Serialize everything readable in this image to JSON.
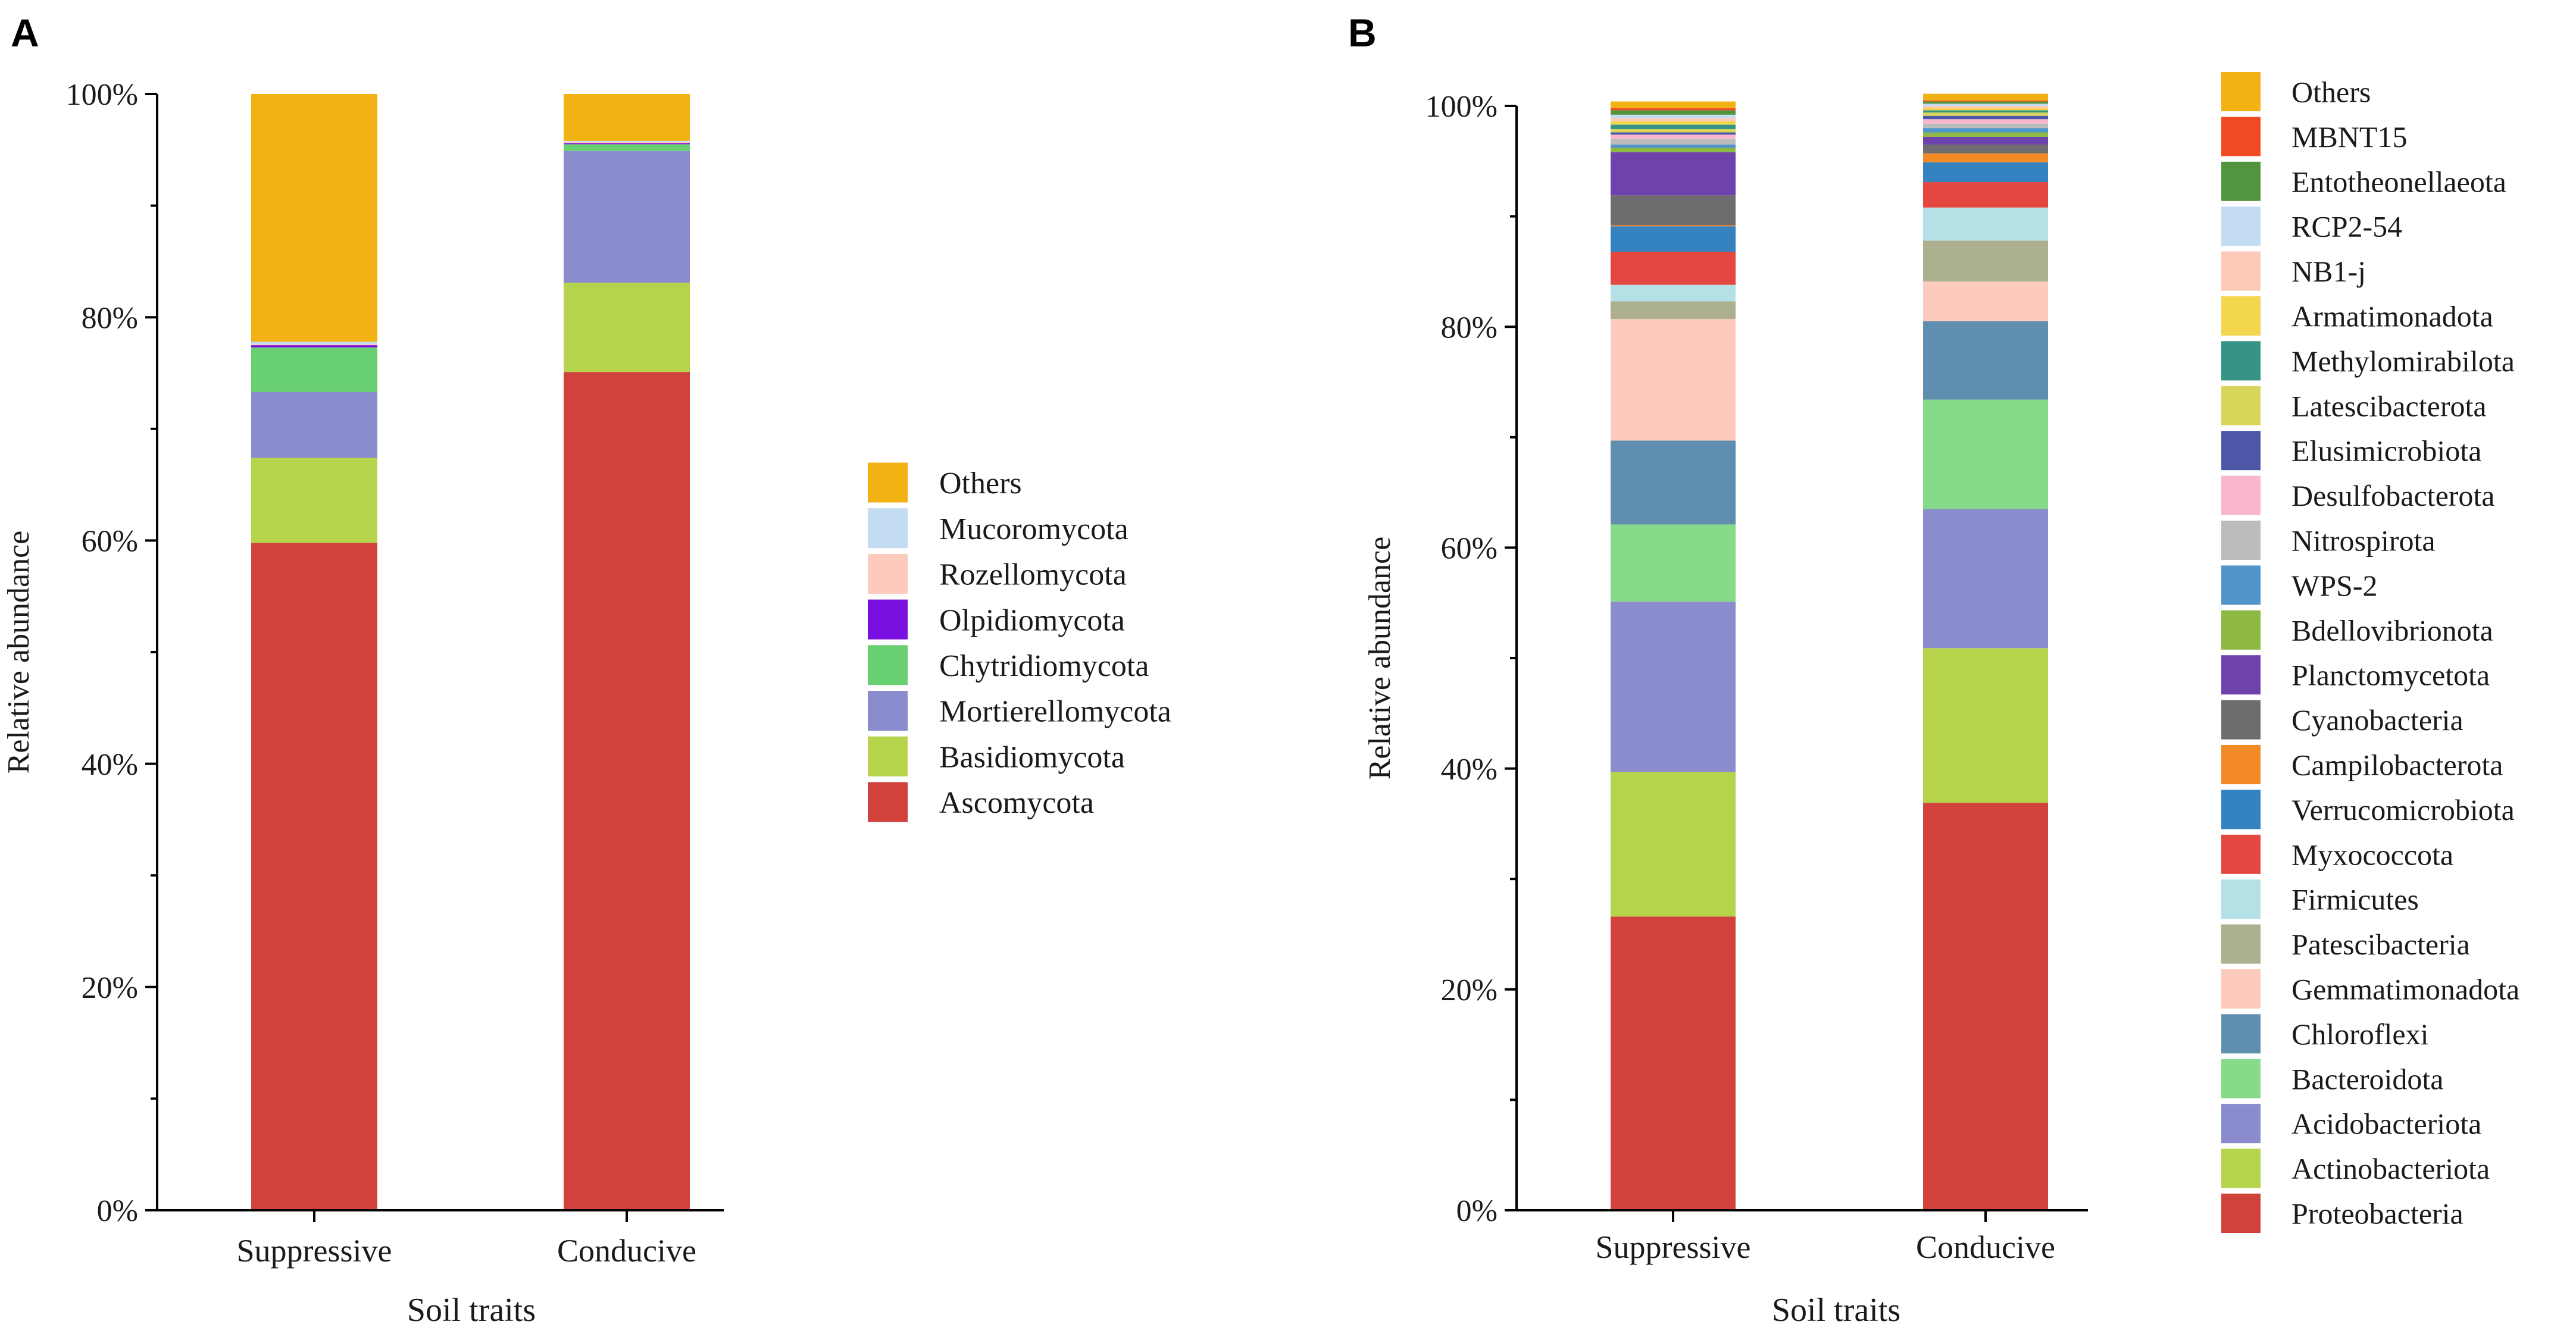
{
  "chart_data": [
    {
      "panel_label": "A",
      "type": "bar",
      "stacked": true,
      "xlabel": "Soil traits",
      "ylabel": "Relative abundance",
      "ylim": [
        0,
        100
      ],
      "yticks": [
        "0%",
        "20%",
        "40%",
        "60%",
        "80%",
        "100%"
      ],
      "categories": [
        "Suppressive",
        "Conducive"
      ],
      "series": [
        {
          "name": "Ascomycota",
          "color": "#d2423d",
          "values": [
            59.8,
            75.1
          ]
        },
        {
          "name": "Basidiomycota",
          "color": "#b5d44c",
          "values": [
            7.6,
            8.0
          ]
        },
        {
          "name": "Mortierellomycota",
          "color": "#8b8ccd",
          "values": [
            5.9,
            11.8
          ]
        },
        {
          "name": "Chytridiomycota",
          "color": "#69d072",
          "values": [
            4.0,
            0.6
          ]
        },
        {
          "name": "Olpidiomycota",
          "color": "#7a10e0",
          "values": [
            0.2,
            0.1
          ]
        },
        {
          "name": "Rozellomycota",
          "color": "#fccbbd",
          "values": [
            0.1,
            0.1
          ]
        },
        {
          "name": "Mucoromycota",
          "color": "#c4dcf2",
          "values": [
            0.2,
            0.1
          ]
        },
        {
          "name": "Others",
          "color": "#f3b214",
          "values": [
            22.2,
            4.2
          ]
        }
      ],
      "legend_position": "right"
    },
    {
      "panel_label": "B",
      "type": "bar",
      "stacked": true,
      "xlabel": "Soil traits",
      "ylabel": "Relative abundance",
      "ylim": [
        0,
        100
      ],
      "yticks": [
        "0%",
        "20%",
        "40%",
        "60%",
        "80%",
        "100%"
      ],
      "categories": [
        "Suppressive",
        "Conducive"
      ],
      "series": [
        {
          "name": "Proteobacteria",
          "color": "#d2423d",
          "values": [
            26.6,
            36.9
          ]
        },
        {
          "name": "Actinobacteriota",
          "color": "#b5d44c",
          "values": [
            13.1,
            14.0
          ]
        },
        {
          "name": "Acidobacteriota",
          "color": "#8b8ccd",
          "values": [
            15.4,
            12.6
          ]
        },
        {
          "name": "Bacteroidota",
          "color": "#88da8b",
          "values": [
            7.0,
            9.9
          ]
        },
        {
          "name": "Chloroflexi",
          "color": "#5f8eaf",
          "values": [
            7.6,
            7.1
          ]
        },
        {
          "name": "Gemmatimonadota",
          "color": "#fccbbd",
          "values": [
            11.0,
            3.6
          ]
        },
        {
          "name": "Patescibacteria",
          "color": "#adb08f",
          "values": [
            1.6,
            3.7
          ]
        },
        {
          "name": "Firmicutes",
          "color": "#b5e1e6",
          "values": [
            1.5,
            3.0
          ]
        },
        {
          "name": "Myxococcota",
          "color": "#e4473f",
          "values": [
            3.0,
            2.3
          ]
        },
        {
          "name": "Verrucomicrobiota",
          "color": "#3482c0",
          "values": [
            2.3,
            1.8
          ]
        },
        {
          "name": "Campilobacterota",
          "color": "#f28a26",
          "values": [
            0.1,
            0.8
          ]
        },
        {
          "name": "Cyanobacteria",
          "color": "#6e6c6e",
          "values": [
            2.7,
            0.8
          ]
        },
        {
          "name": "Planctomycetota",
          "color": "#6d42ad",
          "values": [
            3.9,
            0.7
          ]
        },
        {
          "name": "Bdellovibrionota",
          "color": "#8cb843",
          "values": [
            0.4,
            0.4
          ]
        },
        {
          "name": "WPS-2",
          "color": "#5295cc",
          "values": [
            0.3,
            0.4
          ]
        },
        {
          "name": "Nitrospirota",
          "color": "#bcbcbc",
          "values": [
            0.5,
            0.4
          ]
        },
        {
          "name": "Desulfobacterota",
          "color": "#f8b7cf",
          "values": [
            0.4,
            0.4
          ]
        },
        {
          "name": "Elusimicrobiota",
          "color": "#4d56a7",
          "values": [
            0.2,
            0.3
          ]
        },
        {
          "name": "Latescibacterota",
          "color": "#d7d55a",
          "values": [
            0.3,
            0.3
          ]
        },
        {
          "name": "Methylomirabilota",
          "color": "#369385",
          "values": [
            0.4,
            0.2
          ]
        },
        {
          "name": "Armatimonadota",
          "color": "#f1d64e",
          "values": [
            0.3,
            0.2
          ]
        },
        {
          "name": "NB1-j",
          "color": "#fdc9b9",
          "values": [
            0.3,
            0.2
          ]
        },
        {
          "name": "RCP2-54",
          "color": "#c4dcf2",
          "values": [
            0.3,
            0.2
          ]
        },
        {
          "name": "Entotheonellaeota",
          "color": "#52953f",
          "values": [
            0.4,
            0.2
          ]
        },
        {
          "name": "MBNT15",
          "color": "#f04a23",
          "values": [
            0.2,
            0.1
          ]
        },
        {
          "name": "Others",
          "color": "#f3b214",
          "values": [
            0.6,
            0.6
          ]
        }
      ],
      "legend_position": "right"
    }
  ]
}
